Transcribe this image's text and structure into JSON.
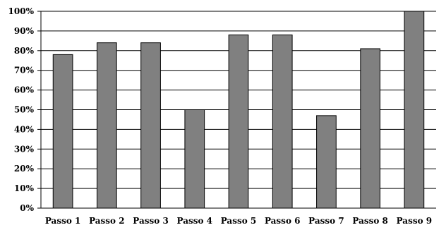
{
  "chart_data": {
    "type": "bar",
    "categories": [
      "Passo 1",
      "Passo 2",
      "Passo 3",
      "Passo 4",
      "Passo 5",
      "Passo 6",
      "Passo 7",
      "Passo 8",
      "Passo 9"
    ],
    "values": [
      78,
      84,
      84,
      50,
      88,
      88,
      47,
      81,
      100
    ],
    "ylim": [
      0,
      100
    ],
    "yticks": [
      0,
      10,
      20,
      30,
      40,
      50,
      60,
      70,
      80,
      90,
      100
    ],
    "ytick_labels": [
      "0%",
      "10%",
      "20%",
      "30%",
      "40%",
      "50%",
      "60%",
      "70%",
      "80%",
      "90%",
      "100%"
    ],
    "grid": true,
    "bar_color": "#808080",
    "bar_edge_color": "#000000",
    "title": "",
    "xlabel": "",
    "ylabel": ""
  }
}
